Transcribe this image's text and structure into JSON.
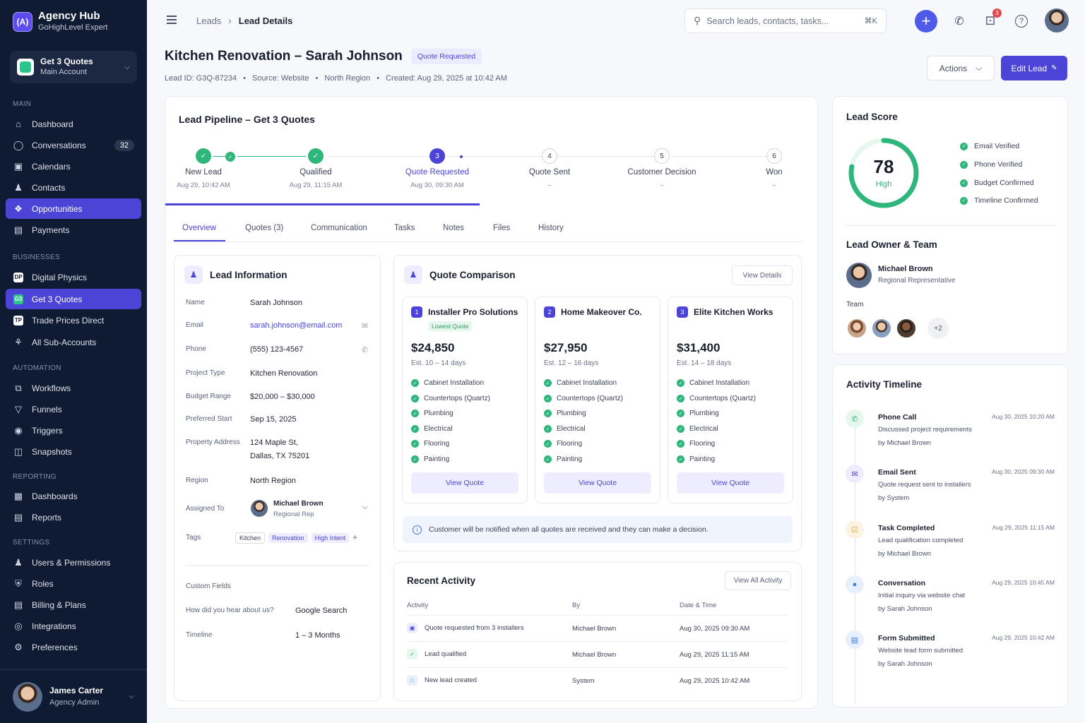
{
  "brand": {
    "name": "Agency Hub",
    "subtitle": "GoHighLevel Expert"
  },
  "account": {
    "name": "Get 3 Quotes",
    "subtitle": "Main Account"
  },
  "sidebar": {
    "main_label": "MAIN",
    "main": [
      {
        "label": "Dashboard",
        "icon": "home-icon"
      },
      {
        "label": "Conversations",
        "icon": "chat-icon",
        "count": "32"
      },
      {
        "label": "Calendars",
        "icon": "calendar-icon"
      },
      {
        "label": "Contacts",
        "icon": "contacts-icon"
      },
      {
        "label": "Opportunities",
        "icon": "opportunities-icon",
        "active": true
      },
      {
        "label": "Payments",
        "icon": "payments-icon"
      }
    ],
    "businesses_label": "BUSINESSES",
    "businesses": [
      {
        "label": "Digital Physics",
        "icon_text": "DP"
      },
      {
        "label": "Get 3 Quotes",
        "icon_text": "G3",
        "active": true
      },
      {
        "label": "Trade Prices Direct",
        "icon_text": "TP"
      },
      {
        "label": "All Sub-Accounts",
        "icon": "sub-accounts-icon"
      }
    ],
    "automation_label": "AUTOMATION",
    "automation": [
      {
        "label": "Workflows"
      },
      {
        "label": "Funnels"
      },
      {
        "label": "Triggers"
      },
      {
        "label": "Snapshots"
      }
    ],
    "reporting_label": "REPORTING",
    "reporting": [
      {
        "label": "Dashboards"
      },
      {
        "label": "Reports"
      }
    ],
    "settings_label": "SETTINGS",
    "settings": [
      {
        "label": "Users & Permissions"
      },
      {
        "label": "Roles"
      },
      {
        "label": "Billing & Plans"
      },
      {
        "label": "Integrations"
      },
      {
        "label": "Preferences"
      }
    ]
  },
  "user": {
    "name": "James Carter",
    "role": "Agency Admin"
  },
  "breadcrumb": {
    "parent": "Leads",
    "current": "Lead Details"
  },
  "search": {
    "placeholder": "Search leads, contacts, tasks...",
    "shortcut": "⌘K"
  },
  "notifications": {
    "count": "3"
  },
  "header": {
    "title": "Kitchen Renovation – Sarah Johnson",
    "status": "Quote Requested",
    "lead_id": "Lead ID: G3Q-87234",
    "source": "Source: Website",
    "region": "North Region",
    "created": "Created: Aug 29, 2025 at 10:42 AM",
    "actions_label": "Actions",
    "edit_label": "Edit Lead"
  },
  "pipeline": {
    "title": "Lead Pipeline – Get 3 Quotes",
    "stages": [
      {
        "num": "✓",
        "label": "New Lead",
        "date": "Aug 29, 10:42 AM",
        "state": "done"
      },
      {
        "num": "✓",
        "label": "Qualified",
        "date": "Aug 29, 11:15 AM",
        "state": "done"
      },
      {
        "num": "3",
        "label": "Quote Requested",
        "date": "Aug 30, 09:30 AM",
        "state": "current"
      },
      {
        "num": "4",
        "label": "Quote Sent",
        "date": "–",
        "state": "todo"
      },
      {
        "num": "5",
        "label": "Customer Decision",
        "date": "–",
        "state": "todo"
      },
      {
        "num": "6",
        "label": "Won",
        "date": "–",
        "state": "todo"
      }
    ]
  },
  "tabs": [
    "Overview",
    "Quotes (3)",
    "Communication",
    "Tasks",
    "Notes",
    "Files",
    "History"
  ],
  "lead_info": {
    "title": "Lead Information",
    "fields": [
      {
        "key": "Name",
        "value": "Sarah Johnson"
      },
      {
        "key": "Email",
        "value": "sarah.johnson@email.com"
      },
      {
        "key": "Phone",
        "value": "(555) 123-4567"
      },
      {
        "key": "Project Type",
        "value": "Kitchen Renovation"
      },
      {
        "key": "Budget Range",
        "value": "$20,000 – $30,000"
      },
      {
        "key": "Preferred Start",
        "value": "Sep 15, 2025"
      },
      {
        "key": "Property Address",
        "value": "124 Maple St,",
        "value2": "Dallas, TX 75201"
      },
      {
        "key": "Region",
        "value": "North Region"
      },
      {
        "key": "Assigned To",
        "value": "Michael Brown",
        "value2": "Regional Rep"
      },
      {
        "key": "Tags"
      }
    ],
    "tags": [
      "Kitchen",
      "Renovation",
      "High Intent"
    ],
    "custom_fields_label": "Custom Fields",
    "custom_fields": [
      {
        "key": "How did you hear about us?",
        "value": "Google Search"
      },
      {
        "key": "Timeline",
        "value": "1 – 3 Months"
      }
    ]
  },
  "quotes": {
    "title": "Quote Comparison",
    "view_details": "View Details",
    "items": [
      {
        "num": "1",
        "name": "Installer Pro Solutions",
        "badge": "Lowest Quote",
        "price": "$24,850",
        "est": "Est. 10 – 14 days"
      },
      {
        "num": "2",
        "name": "Home Makeover Co.",
        "price": "$27,950",
        "est": "Est. 12 – 16 days"
      },
      {
        "num": "3",
        "name": "Elite Kitchen Works",
        "price": "$31,400",
        "est": "Est. 14 – 18 days"
      }
    ],
    "scope": [
      "Cabinet Installation",
      "Countertops (Quartz)",
      "Plumbing",
      "Electrical",
      "Flooring",
      "Painting"
    ],
    "view_quote": "View Quote",
    "notice": "Customer will be notified when all quotes are received and they can make a decision."
  },
  "recent_activity": {
    "title": "Recent Activity",
    "view_all": "View All Activity",
    "headers": [
      "Activity",
      "By",
      "Date & Time"
    ],
    "rows": [
      {
        "activity": "Quote requested from 3 installers",
        "by": "Michael Brown",
        "date": "Aug 30, 2025 09:30 AM"
      },
      {
        "activity": "Lead qualified",
        "by": "Michael Brown",
        "date": "Aug 29, 2025 11:15 AM"
      },
      {
        "activity": "New lead created",
        "by": "System",
        "date": "Aug 29, 2025 10:42 AM"
      }
    ]
  },
  "lead_score": {
    "title": "Lead Score",
    "value": "78",
    "level": "High",
    "fraction": 0.78,
    "checks": [
      "Email Verified",
      "Phone Verified",
      "Budget Confirmed",
      "Timeline Confirmed"
    ]
  },
  "owner": {
    "title": "Lead Owner & Team",
    "name": "Michael Brown",
    "role": "Regional Representative",
    "team_label": "Team",
    "more": "+2"
  },
  "timeline": {
    "title": "Activity Timeline",
    "items": [
      {
        "title": "Phone Call",
        "time": "Aug 30, 2025 10:20 AM",
        "desc": "Discussed project requirements",
        "by": "by Michael Brown",
        "icon": "phone-icon",
        "color": "#2fb67c",
        "bg": "#e6f7ee"
      },
      {
        "title": "Email Sent",
        "time": "Aug 30, 2025 09:30 AM",
        "desc": "Quote request sent to installers",
        "by": "by System",
        "icon": "mail-icon",
        "color": "#4b44d6",
        "bg": "#eeedff"
      },
      {
        "title": "Task Completed",
        "time": "Aug 29, 2025 11:15 AM",
        "desc": "Lead qualification completed",
        "by": "by Michael Brown",
        "icon": "task-icon",
        "color": "#e8a23a",
        "bg": "#fdf3e3"
      },
      {
        "title": "Conversation",
        "time": "Aug 29, 2025 10:45 AM",
        "desc": "Initial inquiry via website chat",
        "by": "by Sarah Johnson",
        "icon": "chat-icon",
        "color": "#3a7be0",
        "bg": "#e8f0fd"
      },
      {
        "title": "Form Submitted",
        "time": "Aug 29, 2025 10:42 AM",
        "desc": "Website lead form submitted",
        "by": "by Sarah Johnson",
        "icon": "form-icon",
        "color": "#3a7be0",
        "bg": "#e8f0fd"
      }
    ]
  }
}
